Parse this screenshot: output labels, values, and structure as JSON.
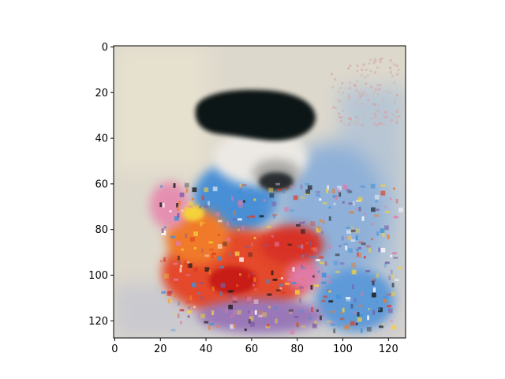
{
  "chart_data": {
    "type": "heatmap",
    "title": "",
    "xlabel": "",
    "ylabel": "",
    "xlim": [
      -0.5,
      127.5
    ],
    "ylim": [
      127.5,
      -0.5
    ],
    "y_inverted": true,
    "grid": false,
    "x_ticks": [
      0,
      20,
      40,
      60,
      80,
      100,
      120
    ],
    "x_tick_labels": [
      "0",
      "20",
      "40",
      "60",
      "80",
      "100",
      "120"
    ],
    "y_ticks": [
      0,
      20,
      40,
      60,
      80,
      100,
      120
    ],
    "y_tick_labels": [
      "0",
      "20",
      "40",
      "60",
      "80",
      "100",
      "120"
    ],
    "image": {
      "width": 128,
      "height": 128,
      "description_colors": {
        "background": "#d9d4c8",
        "dark_blob": "#101418",
        "light_patch": "#eae7e2",
        "blue": "#3f8fd8",
        "red": "#e03a22",
        "orange": "#f07a20",
        "pink": "#e07aa8",
        "purple": "#7a5aa0"
      }
    }
  }
}
